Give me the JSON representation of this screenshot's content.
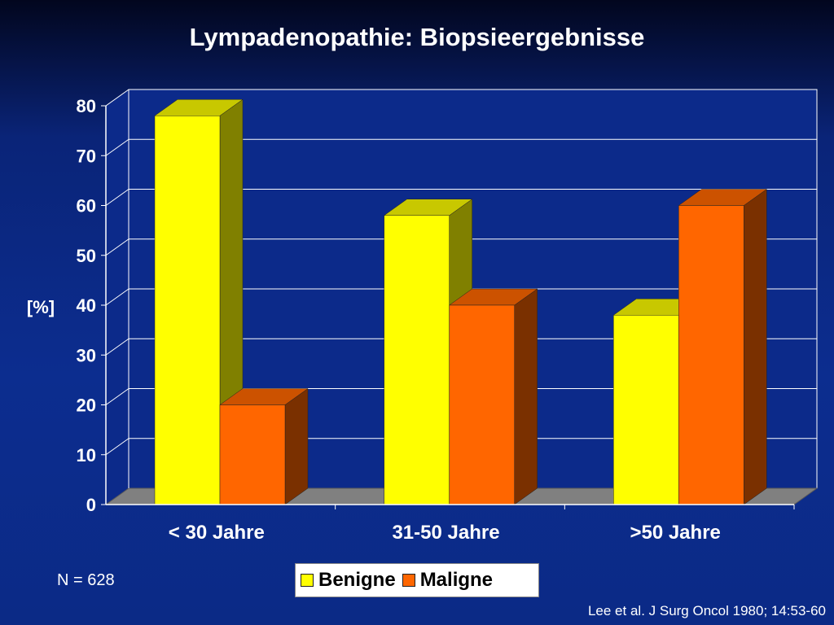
{
  "slide": {
    "note": "N = 628",
    "source": "Lee et al. J Surg Oncol 1980; 14:53-60"
  },
  "chart_data": {
    "type": "bar",
    "title": "Lympadenopathie: Biopsieergebnisse",
    "ylabel": "[%]",
    "xlabel": "",
    "ylim": [
      0,
      80
    ],
    "yticks": [
      0,
      10,
      20,
      30,
      40,
      50,
      60,
      70,
      80
    ],
    "categories": [
      "< 30 Jahre",
      "31-50 Jahre",
      ">50 Jahre"
    ],
    "series": [
      {
        "name": "Benigne",
        "values": [
          78,
          58,
          38
        ],
        "color": "#ffff00",
        "top": "#c8c800",
        "side": "#808000"
      },
      {
        "name": "Maligne",
        "values": [
          20,
          40,
          60
        ],
        "color": "#ff6600",
        "top": "#cc5200",
        "side": "#7a3000"
      }
    ],
    "grid": true,
    "legend": "bottom",
    "style": "3d-clustered-column"
  }
}
